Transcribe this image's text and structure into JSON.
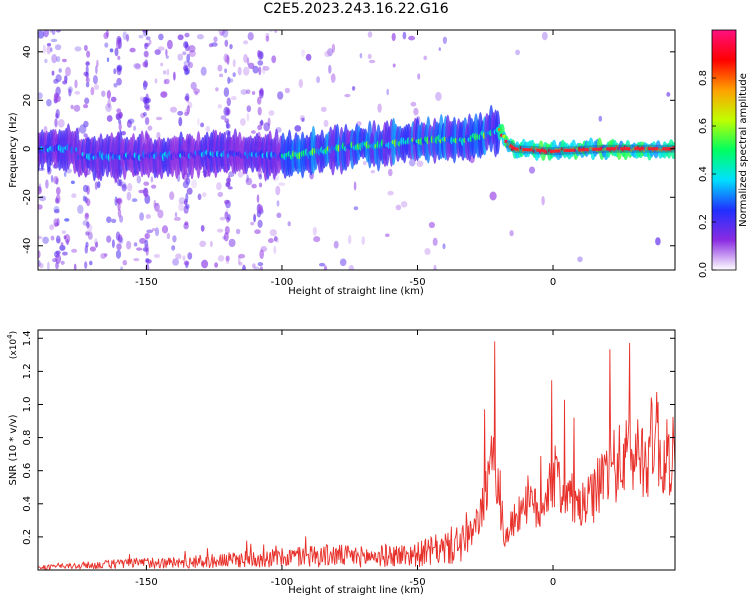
{
  "title": "C2E5.2023.243.16.22.G16",
  "chart_data": [
    {
      "type": "heatmap",
      "title": "",
      "xlabel": "Height of straight line (km)",
      "ylabel": "Frequency (Hz)",
      "xlim": [
        -190,
        45
      ],
      "ylim": [
        -50,
        49
      ],
      "xticks": [
        -150,
        -100,
        -50,
        0
      ],
      "yticks": [
        -40,
        -20,
        0,
        20,
        40
      ],
      "colorbar": {
        "label": "Normalized spectral amplitude",
        "range": [
          0.0,
          1.0
        ],
        "ticks": [
          "0.0",
          "0.2",
          "0.4",
          "0.6",
          "0.8"
        ],
        "colormap": [
          "#ffffff",
          "#8a2be2",
          "#2030ff",
          "#00e0ff",
          "#00ff60",
          "#c0ff00",
          "#ffa000",
          "#ff0000",
          "#ff1080"
        ]
      },
      "description_of_field": "Weak scattered power at low heights (-190 to -100 km), strongest narrow band near 0 Hz increasing in amplitude toward positive heights; band saturates (red) from about -20 km to 45 km.",
      "band_center_hz": [
        {
          "x": -175,
          "y": -3
        },
        {
          "x": -150,
          "y": -3
        },
        {
          "x": -125,
          "y": -2
        },
        {
          "x": -100,
          "y": -3
        },
        {
          "x": -90,
          "y": -2
        },
        {
          "x": -75,
          "y": 1
        },
        {
          "x": -60,
          "y": 2
        },
        {
          "x": -45,
          "y": 4
        },
        {
          "x": -35,
          "y": 3
        },
        {
          "x": -25,
          "y": 6
        },
        {
          "x": -20,
          "y": 8
        },
        {
          "x": -15,
          "y": 0
        },
        {
          "x": 0,
          "y": -1
        },
        {
          "x": 20,
          "y": 0
        },
        {
          "x": 45,
          "y": 0
        }
      ]
    },
    {
      "type": "line",
      "title": "",
      "xlabel": "Height of straight line (km)",
      "ylabel": "SNR (10 * v/v)",
      "y_multiplier": "(x10",
      "y_multiplier_exp": "4",
      "y_multiplier_close": ")",
      "xlim": [
        -190,
        45
      ],
      "ylim": [
        0,
        1.45
      ],
      "xticks": [
        -150,
        -100,
        -50,
        0
      ],
      "yticks": [
        0.2,
        0.4,
        0.6,
        0.8,
        1.0,
        1.2,
        1.4
      ],
      "series": [
        {
          "color": "#e8302a",
          "x": [
            -190,
            -180,
            -170,
            -160,
            -150,
            -140,
            -130,
            -120,
            -110,
            -100,
            -90,
            -80,
            -70,
            -60,
            -50,
            -40,
            -35,
            -30,
            -27,
            -25,
            -23,
            -21,
            -20,
            -18,
            -15,
            -10,
            -5,
            -2,
            0,
            5,
            10,
            15,
            20,
            25,
            30,
            35,
            38,
            40,
            45
          ],
          "y": [
            0.02,
            0.03,
            0.04,
            0.05,
            0.06,
            0.06,
            0.07,
            0.08,
            0.1,
            0.1,
            0.12,
            0.12,
            0.11,
            0.12,
            0.13,
            0.18,
            0.22,
            0.3,
            0.55,
            0.7,
            0.95,
            1.12,
            0.6,
            0.3,
            0.45,
            0.7,
            0.55,
            0.8,
            0.92,
            0.75,
            0.6,
            0.72,
            1.0,
            1.05,
            1.15,
            1.1,
            1.45,
            1.0,
            1.2
          ]
        }
      ]
    }
  ]
}
